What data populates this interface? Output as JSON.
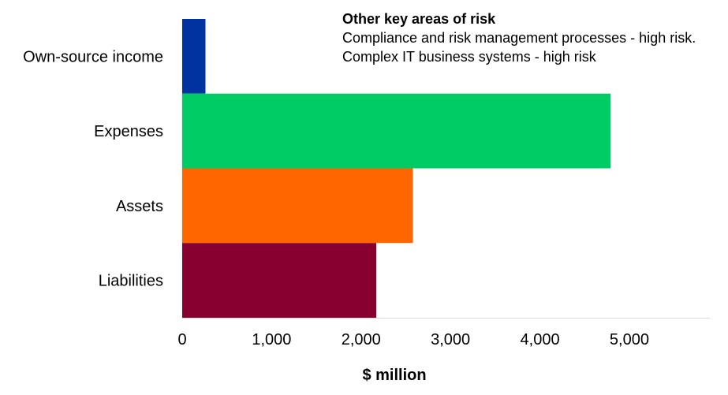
{
  "chart_data": {
    "type": "bar",
    "orientation": "horizontal",
    "categories": [
      "Own-source income",
      "Expenses",
      "Assets",
      "Liabilities"
    ],
    "values": [
      260,
      4790,
      2580,
      2170
    ],
    "colors": [
      "#0033A0",
      "#00CC66",
      "#FF6600",
      "#880030"
    ],
    "xlabel": "$ million",
    "xlim": [
      0,
      5900
    ],
    "xticks": [
      0,
      1000,
      2000,
      3000,
      4000,
      5000
    ],
    "xtick_labels": [
      "0",
      "1,000",
      "2,000",
      "3,000",
      "4,000",
      "5,000"
    ],
    "grid": false,
    "legend": "none"
  },
  "annotation": {
    "title": "Other key areas of risk",
    "lines": [
      "Compliance and risk management processes - high risk.",
      "Complex IT business systems - high risk"
    ]
  }
}
